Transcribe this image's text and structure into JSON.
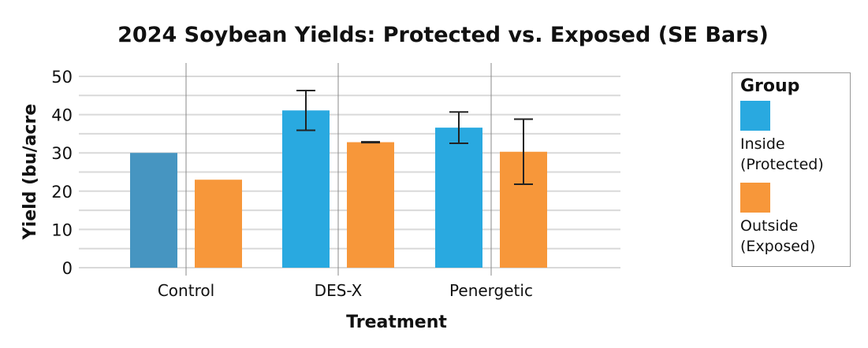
{
  "chart_data": {
    "type": "bar",
    "title": "2024 Soybean Yields: Protected vs. Exposed (SE Bars)",
    "xlabel": "Treatment",
    "ylabel": "Yield (bu/acre",
    "ylim": [
      0,
      50
    ],
    "yticks": [
      0,
      10,
      20,
      30,
      40,
      50
    ],
    "grid": true,
    "categories": [
      "Control",
      "DES-X",
      "Penergetic"
    ],
    "series": [
      {
        "name": "Inside\n(Protected)",
        "color": "#29a9e0",
        "values": [
          30,
          41.1,
          36.6
        ],
        "se": [
          null,
          5.2,
          4.1
        ]
      },
      {
        "name": "Outside\n(Exposed)",
        "color": "#f7973a",
        "values": [
          23,
          32.8,
          30.3
        ],
        "se": [
          null,
          0.1,
          8.5
        ]
      }
    ],
    "control_inside_color": "#4695c1",
    "legend": {
      "title": "Group",
      "placement": "right"
    }
  }
}
